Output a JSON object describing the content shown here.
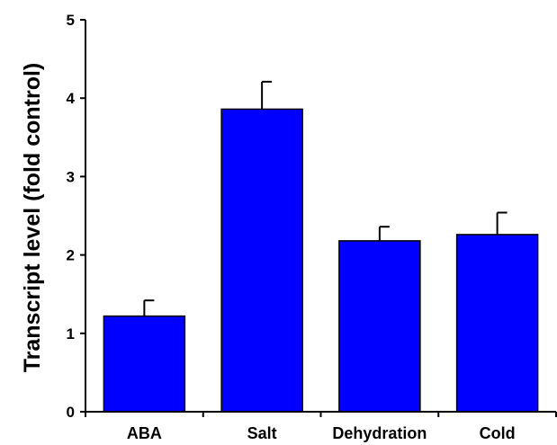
{
  "chart_data": {
    "type": "bar",
    "categories": [
      "ABA",
      "Salt",
      "Dehydration",
      "Cold"
    ],
    "values": [
      1.22,
      3.86,
      2.18,
      2.26
    ],
    "errors": [
      0.2,
      0.35,
      0.18,
      0.28
    ],
    "title": "",
    "xlabel": "",
    "ylabel": "Transcript level (fold control)",
    "ylim": [
      0,
      5
    ],
    "yticks": [
      0,
      1,
      2,
      3,
      4,
      5
    ],
    "grid": false,
    "bar_color": "#0000ff",
    "bar_edge_color": "#000000"
  }
}
